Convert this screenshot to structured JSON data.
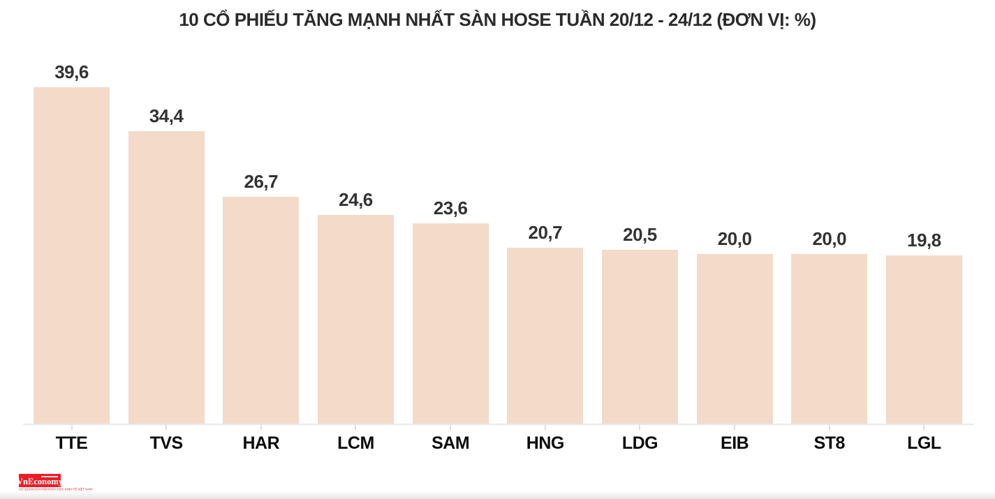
{
  "chart_data": {
    "type": "bar",
    "title": "10 CỔ PHIẾU TĂNG MẠNH NHẤT SÀN HOSE TUẦN 20/12 - 24/12 (ĐƠN VỊ: %)",
    "unit": "%",
    "categories": [
      "TTE",
      "TVS",
      "HAR",
      "LCM",
      "SAM",
      "HNG",
      "LDG",
      "EIB",
      "ST8",
      "LGL"
    ],
    "values": [
      39.6,
      34.4,
      26.7,
      24.6,
      23.6,
      20.7,
      20.5,
      20.0,
      20.0,
      19.8
    ],
    "value_labels": [
      "39,6",
      "34,4",
      "26,7",
      "24,6",
      "23,6",
      "20,7",
      "20,5",
      "20,0",
      "20,0",
      "19,8"
    ],
    "xlabel": "",
    "ylabel": "",
    "ylim": [
      0,
      42
    ],
    "grid": false,
    "legend_position": "none",
    "bar_color": "#f3dac9",
    "value_label_color": "#333333",
    "category_label_color": "#0a0a0a",
    "axis_line_color": "#e8e8e8"
  },
  "footer": {
    "logo_text": "VnEconomy",
    "logo_tagline": "CƠ QUAN CỦA HỘI KHOA HỌC KINH TẾ VIỆT NAM",
    "logo_bg_color": "#ee1c25",
    "logo_text_color": "#ffffff"
  }
}
